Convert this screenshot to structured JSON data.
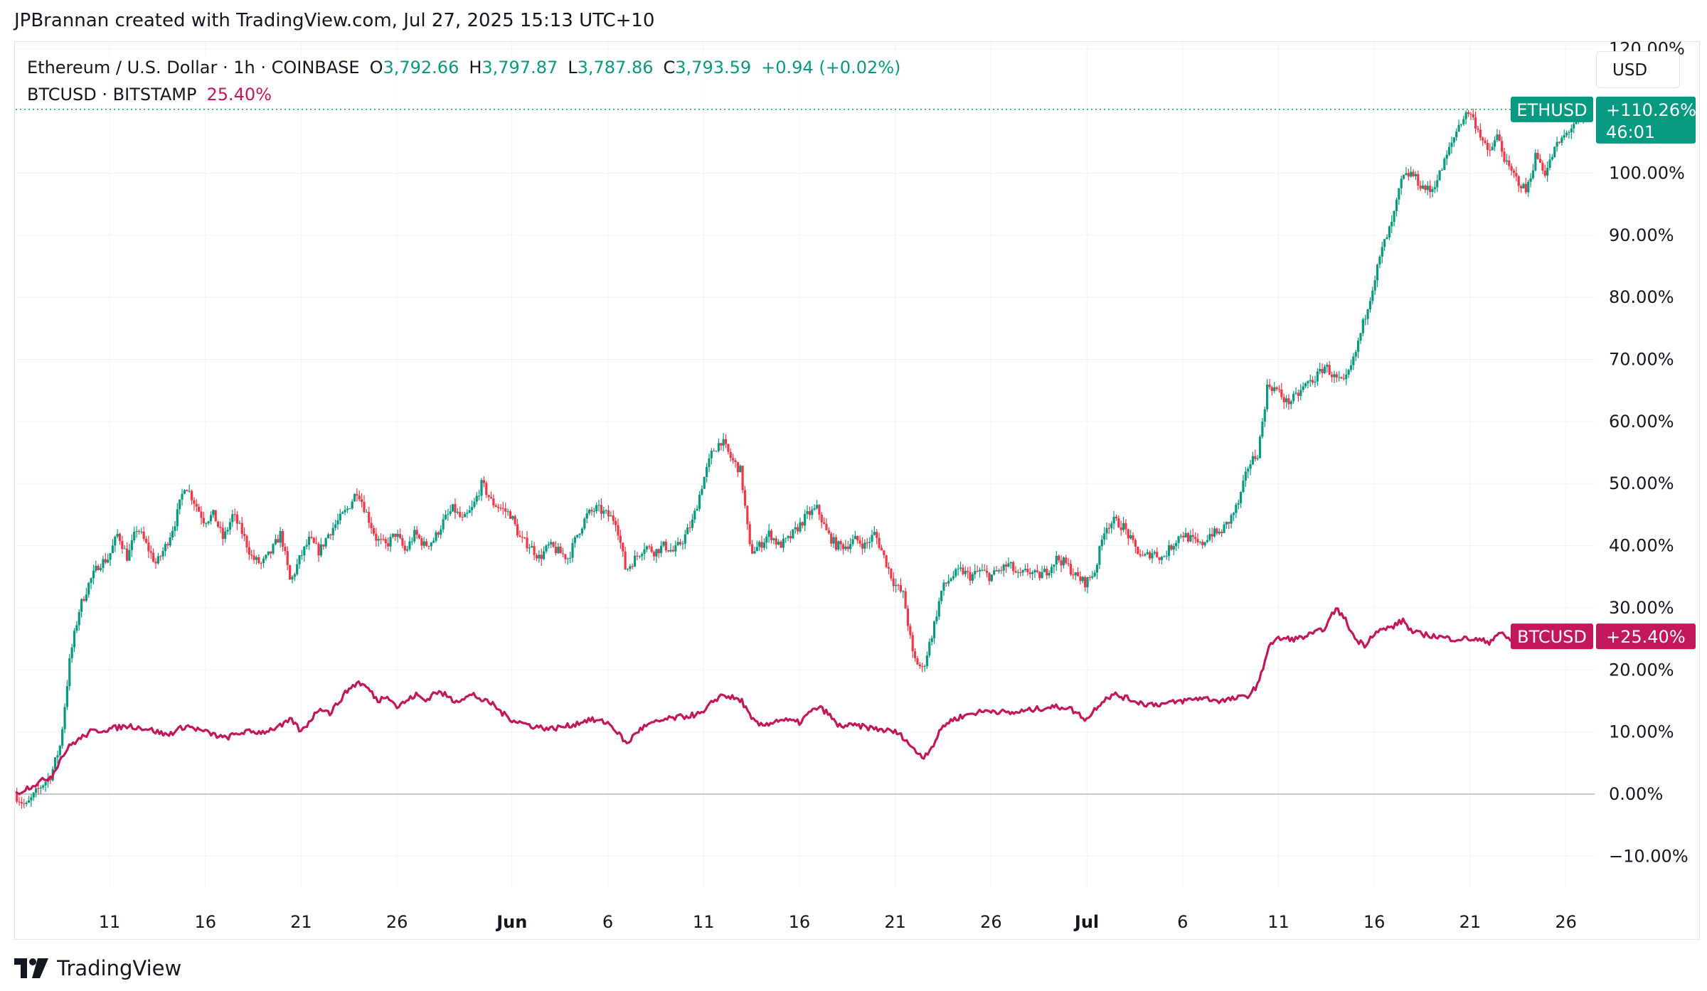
{
  "header": {
    "creator_line": "JPBrannan created with TradingView.com, Jul 27, 2025 15:13 UTC+10"
  },
  "legend": {
    "eth_title": "Ethereum / U.S. Dollar · 1h · COINBASE",
    "o_label": "O",
    "o_value": "3,792.66",
    "h_label": "H",
    "h_value": "3,797.87",
    "l_label": "L",
    "l_value": "3,787.86",
    "c_label": "C",
    "c_value": "3,793.59",
    "change": "+0.94 (+0.02%)",
    "btc_title": "BTCUSD · BITSTAMP",
    "btc_value": "25.40%"
  },
  "currency_button": "USD",
  "footer": {
    "brand": "TradingView"
  },
  "colors": {
    "eth_up": "#089981",
    "eth_down": "#f23645",
    "btc": "#c2185b",
    "grid": "#f0f3fa",
    "axis_text": "#131722",
    "zero_line": "#b2b5be"
  },
  "chart_data": {
    "type": "line",
    "yaxis_unit": "%",
    "ylim": [
      -15,
      121
    ],
    "y_ticks": [
      "120.00%",
      "100.00%",
      "90.00%",
      "80.00%",
      "70.00%",
      "60.00%",
      "50.00%",
      "40.00%",
      "30.00%",
      "20.00%",
      "10.00%",
      "0.00%",
      "−10.00%"
    ],
    "y_tick_values": [
      120,
      100,
      90,
      80,
      70,
      60,
      50,
      40,
      30,
      20,
      10,
      0,
      -10
    ],
    "x_range_days": [
      -1.9,
      80.5
    ],
    "x_ticks": [
      {
        "label": "11",
        "day": 3,
        "bold": false
      },
      {
        "label": "16",
        "day": 8,
        "bold": false
      },
      {
        "label": "21",
        "day": 13,
        "bold": false
      },
      {
        "label": "26",
        "day": 18,
        "bold": false
      },
      {
        "label": "Jun",
        "day": 24,
        "bold": true
      },
      {
        "label": "6",
        "day": 29,
        "bold": false
      },
      {
        "label": "11",
        "day": 34,
        "bold": false
      },
      {
        "label": "16",
        "day": 39,
        "bold": false
      },
      {
        "label": "21",
        "day": 44,
        "bold": false
      },
      {
        "label": "26",
        "day": 49,
        "bold": false
      },
      {
        "label": "Jul",
        "day": 54,
        "bold": true
      },
      {
        "label": "6",
        "day": 59,
        "bold": false
      },
      {
        "label": "11",
        "day": 64,
        "bold": false
      },
      {
        "label": "16",
        "day": 69,
        "bold": false
      },
      {
        "label": "21",
        "day": 74,
        "bold": false
      },
      {
        "label": "26",
        "day": 79,
        "bold": false
      }
    ],
    "series": [
      {
        "name": "ETHUSD",
        "style": "candles",
        "last_label": "+110.26%",
        "countdown": "46:01",
        "last_value": 110.26,
        "points": [
          [
            -1.9,
            0
          ],
          [
            -1.3,
            -2
          ],
          [
            -0.6,
            1
          ],
          [
            0,
            3
          ],
          [
            0.5,
            8
          ],
          [
            1,
            22
          ],
          [
            1.5,
            30
          ],
          [
            2,
            34
          ],
          [
            2.5,
            37
          ],
          [
            3,
            38
          ],
          [
            3.5,
            42
          ],
          [
            4,
            38
          ],
          [
            4.5,
            43
          ],
          [
            5,
            40
          ],
          [
            5.5,
            37
          ],
          [
            6,
            40
          ],
          [
            6.5,
            44
          ],
          [
            7,
            50
          ],
          [
            7.5,
            47
          ],
          [
            8,
            44
          ],
          [
            8.5,
            45
          ],
          [
            9,
            41
          ],
          [
            9.5,
            45
          ],
          [
            10,
            42
          ],
          [
            10.5,
            38
          ],
          [
            11,
            37
          ],
          [
            11.5,
            39
          ],
          [
            12,
            42
          ],
          [
            12.5,
            34
          ],
          [
            13,
            38
          ],
          [
            13.5,
            41
          ],
          [
            14,
            39
          ],
          [
            14.5,
            42
          ],
          [
            15,
            44
          ],
          [
            15.5,
            46
          ],
          [
            16,
            49
          ],
          [
            16.5,
            45
          ],
          [
            17,
            41
          ],
          [
            17.5,
            40
          ],
          [
            18,
            42
          ],
          [
            18.5,
            39
          ],
          [
            19,
            42
          ],
          [
            19.5,
            40
          ],
          [
            20,
            41
          ],
          [
            20.5,
            44
          ],
          [
            21,
            46
          ],
          [
            21.5,
            44
          ],
          [
            22,
            46
          ],
          [
            22.5,
            50
          ],
          [
            23,
            47
          ],
          [
            23.5,
            46
          ],
          [
            24,
            45
          ],
          [
            24.5,
            41
          ],
          [
            25,
            40
          ],
          [
            25.5,
            38
          ],
          [
            26,
            40
          ],
          [
            26.5,
            39
          ],
          [
            27,
            38
          ],
          [
            27.5,
            42
          ],
          [
            28,
            45
          ],
          [
            28.5,
            46
          ],
          [
            29,
            45
          ],
          [
            29.5,
            44
          ],
          [
            30,
            36
          ],
          [
            30.5,
            38
          ],
          [
            31,
            40
          ],
          [
            31.5,
            39
          ],
          [
            32,
            40
          ],
          [
            32.5,
            39
          ],
          [
            33,
            41
          ],
          [
            33.5,
            44
          ],
          [
            34,
            50
          ],
          [
            34.5,
            55
          ],
          [
            35,
            57
          ],
          [
            35.5,
            54
          ],
          [
            36,
            52
          ],
          [
            36.5,
            39
          ],
          [
            37,
            40
          ],
          [
            37.5,
            42
          ],
          [
            38,
            40
          ],
          [
            38.5,
            41
          ],
          [
            39,
            43
          ],
          [
            39.5,
            45
          ],
          [
            40,
            46
          ],
          [
            40.5,
            42
          ],
          [
            41,
            40
          ],
          [
            41.5,
            40
          ],
          [
            42,
            41
          ],
          [
            42.5,
            40
          ],
          [
            43,
            42
          ],
          [
            43.5,
            38
          ],
          [
            44,
            34
          ],
          [
            44.5,
            32
          ],
          [
            45,
            22
          ],
          [
            45.5,
            20
          ],
          [
            46,
            26
          ],
          [
            46.5,
            33
          ],
          [
            47,
            35
          ],
          [
            47.5,
            36
          ],
          [
            48,
            35
          ],
          [
            48.5,
            36
          ],
          [
            49,
            35
          ],
          [
            49.5,
            36
          ],
          [
            50,
            37
          ],
          [
            50.5,
            35
          ],
          [
            51,
            36
          ],
          [
            51.5,
            35
          ],
          [
            52,
            36
          ],
          [
            52.5,
            38
          ],
          [
            53,
            37
          ],
          [
            53.5,
            35
          ],
          [
            54,
            34
          ],
          [
            54.5,
            36
          ],
          [
            55,
            43
          ],
          [
            55.5,
            44
          ],
          [
            56,
            43
          ],
          [
            56.5,
            40
          ],
          [
            57,
            38
          ],
          [
            57.5,
            39
          ],
          [
            58,
            38
          ],
          [
            58.5,
            40
          ],
          [
            59,
            42
          ],
          [
            59.5,
            41
          ],
          [
            60,
            40
          ],
          [
            60.5,
            42
          ],
          [
            61,
            42
          ],
          [
            61.5,
            44
          ],
          [
            62,
            47
          ],
          [
            62.5,
            53
          ],
          [
            63,
            55
          ],
          [
            63.5,
            66
          ],
          [
            64,
            65
          ],
          [
            64.5,
            63
          ],
          [
            65,
            64
          ],
          [
            65.5,
            66
          ],
          [
            66,
            67
          ],
          [
            66.5,
            69
          ],
          [
            67,
            67
          ],
          [
            67.5,
            66
          ],
          [
            68,
            70
          ],
          [
            68.5,
            76
          ],
          [
            69,
            82
          ],
          [
            69.5,
            88
          ],
          [
            70,
            92
          ],
          [
            70.5,
            99
          ],
          [
            71,
            100
          ],
          [
            71.5,
            98
          ],
          [
            72,
            97
          ],
          [
            72.5,
            100
          ],
          [
            73,
            104
          ],
          [
            73.5,
            108
          ],
          [
            74,
            110
          ],
          [
            74.5,
            107
          ],
          [
            75,
            103
          ],
          [
            75.5,
            106
          ],
          [
            76,
            101
          ],
          [
            76.5,
            99
          ],
          [
            77,
            97
          ],
          [
            77.5,
            103
          ],
          [
            78,
            100
          ],
          [
            78.5,
            104
          ],
          [
            79,
            106
          ],
          [
            79.5,
            108
          ],
          [
            80,
            109
          ],
          [
            80.3,
            110.26
          ]
        ]
      },
      {
        "name": "BTCUSD",
        "style": "line",
        "last_label": "+25.40%",
        "last_value": 25.4,
        "points": [
          [
            -1.9,
            0
          ],
          [
            -1.3,
            1
          ],
          [
            -0.6,
            2
          ],
          [
            0,
            3
          ],
          [
            0.5,
            6
          ],
          [
            1,
            8
          ],
          [
            1.5,
            9
          ],
          [
            2,
            10
          ],
          [
            3,
            10.5
          ],
          [
            4,
            11
          ],
          [
            5,
            10.5
          ],
          [
            6,
            9.5
          ],
          [
            7,
            11
          ],
          [
            8,
            10
          ],
          [
            9,
            9
          ],
          [
            10,
            10
          ],
          [
            11,
            10
          ],
          [
            12,
            11
          ],
          [
            12.5,
            12
          ],
          [
            13,
            10
          ],
          [
            13.5,
            12
          ],
          [
            14,
            14
          ],
          [
            14.5,
            13
          ],
          [
            15,
            15
          ],
          [
            15.5,
            17
          ],
          [
            16,
            18
          ],
          [
            16.5,
            17
          ],
          [
            17,
            15
          ],
          [
            17.5,
            16
          ],
          [
            18,
            14
          ],
          [
            18.5,
            15
          ],
          [
            19,
            16
          ],
          [
            19.5,
            15
          ],
          [
            20,
            16.5
          ],
          [
            20.5,
            16
          ],
          [
            21,
            15
          ],
          [
            21.5,
            15.5
          ],
          [
            22,
            16
          ],
          [
            22.5,
            15
          ],
          [
            23,
            14.5
          ],
          [
            23.5,
            13
          ],
          [
            24,
            12
          ],
          [
            25,
            11
          ],
          [
            26,
            10.5
          ],
          [
            27,
            11
          ],
          [
            28,
            12
          ],
          [
            29,
            11.5
          ],
          [
            29.5,
            10
          ],
          [
            30,
            8
          ],
          [
            30.5,
            10
          ],
          [
            31,
            11
          ],
          [
            32,
            12
          ],
          [
            33,
            12.5
          ],
          [
            34,
            13
          ],
          [
            34.5,
            15
          ],
          [
            35,
            16
          ],
          [
            35.5,
            15.5
          ],
          [
            36,
            15
          ],
          [
            36.5,
            12
          ],
          [
            37,
            11
          ],
          [
            38,
            12
          ],
          [
            39,
            11.5
          ],
          [
            39.5,
            13
          ],
          [
            40,
            14
          ],
          [
            40.5,
            13
          ],
          [
            41,
            11
          ],
          [
            42,
            11
          ],
          [
            43,
            10.5
          ],
          [
            44,
            10
          ],
          [
            44.5,
            9
          ],
          [
            45,
            7
          ],
          [
            45.5,
            6
          ],
          [
            46,
            8
          ],
          [
            46.5,
            11
          ],
          [
            47,
            12
          ],
          [
            48,
            13
          ],
          [
            49,
            13.5
          ],
          [
            50,
            13
          ],
          [
            51,
            13.5
          ],
          [
            52,
            14
          ],
          [
            53,
            14
          ],
          [
            53.5,
            13
          ],
          [
            54,
            12
          ],
          [
            54.5,
            14
          ],
          [
            55,
            15.5
          ],
          [
            55.5,
            16
          ],
          [
            56,
            15.5
          ],
          [
            57,
            14.5
          ],
          [
            58,
            14.5
          ],
          [
            59,
            15
          ],
          [
            60,
            15.5
          ],
          [
            61,
            15
          ],
          [
            62,
            15.5
          ],
          [
            62.5,
            16
          ],
          [
            63,
            18
          ],
          [
            63.5,
            24
          ],
          [
            64,
            25
          ],
          [
            65,
            25
          ],
          [
            66,
            26
          ],
          [
            66.5,
            27
          ],
          [
            67,
            30
          ],
          [
            67.5,
            28
          ],
          [
            68,
            25
          ],
          [
            68.5,
            24
          ],
          [
            69,
            26
          ],
          [
            70,
            27
          ],
          [
            70.5,
            28
          ],
          [
            71,
            26
          ],
          [
            72,
            25.5
          ],
          [
            73,
            25
          ],
          [
            74,
            25
          ],
          [
            75,
            24.5
          ],
          [
            75.5,
            26
          ],
          [
            76,
            25
          ],
          [
            77,
            23.5
          ],
          [
            78,
            24
          ],
          [
            79,
            25
          ],
          [
            80,
            25.2
          ],
          [
            80.3,
            25.4
          ]
        ]
      }
    ]
  }
}
